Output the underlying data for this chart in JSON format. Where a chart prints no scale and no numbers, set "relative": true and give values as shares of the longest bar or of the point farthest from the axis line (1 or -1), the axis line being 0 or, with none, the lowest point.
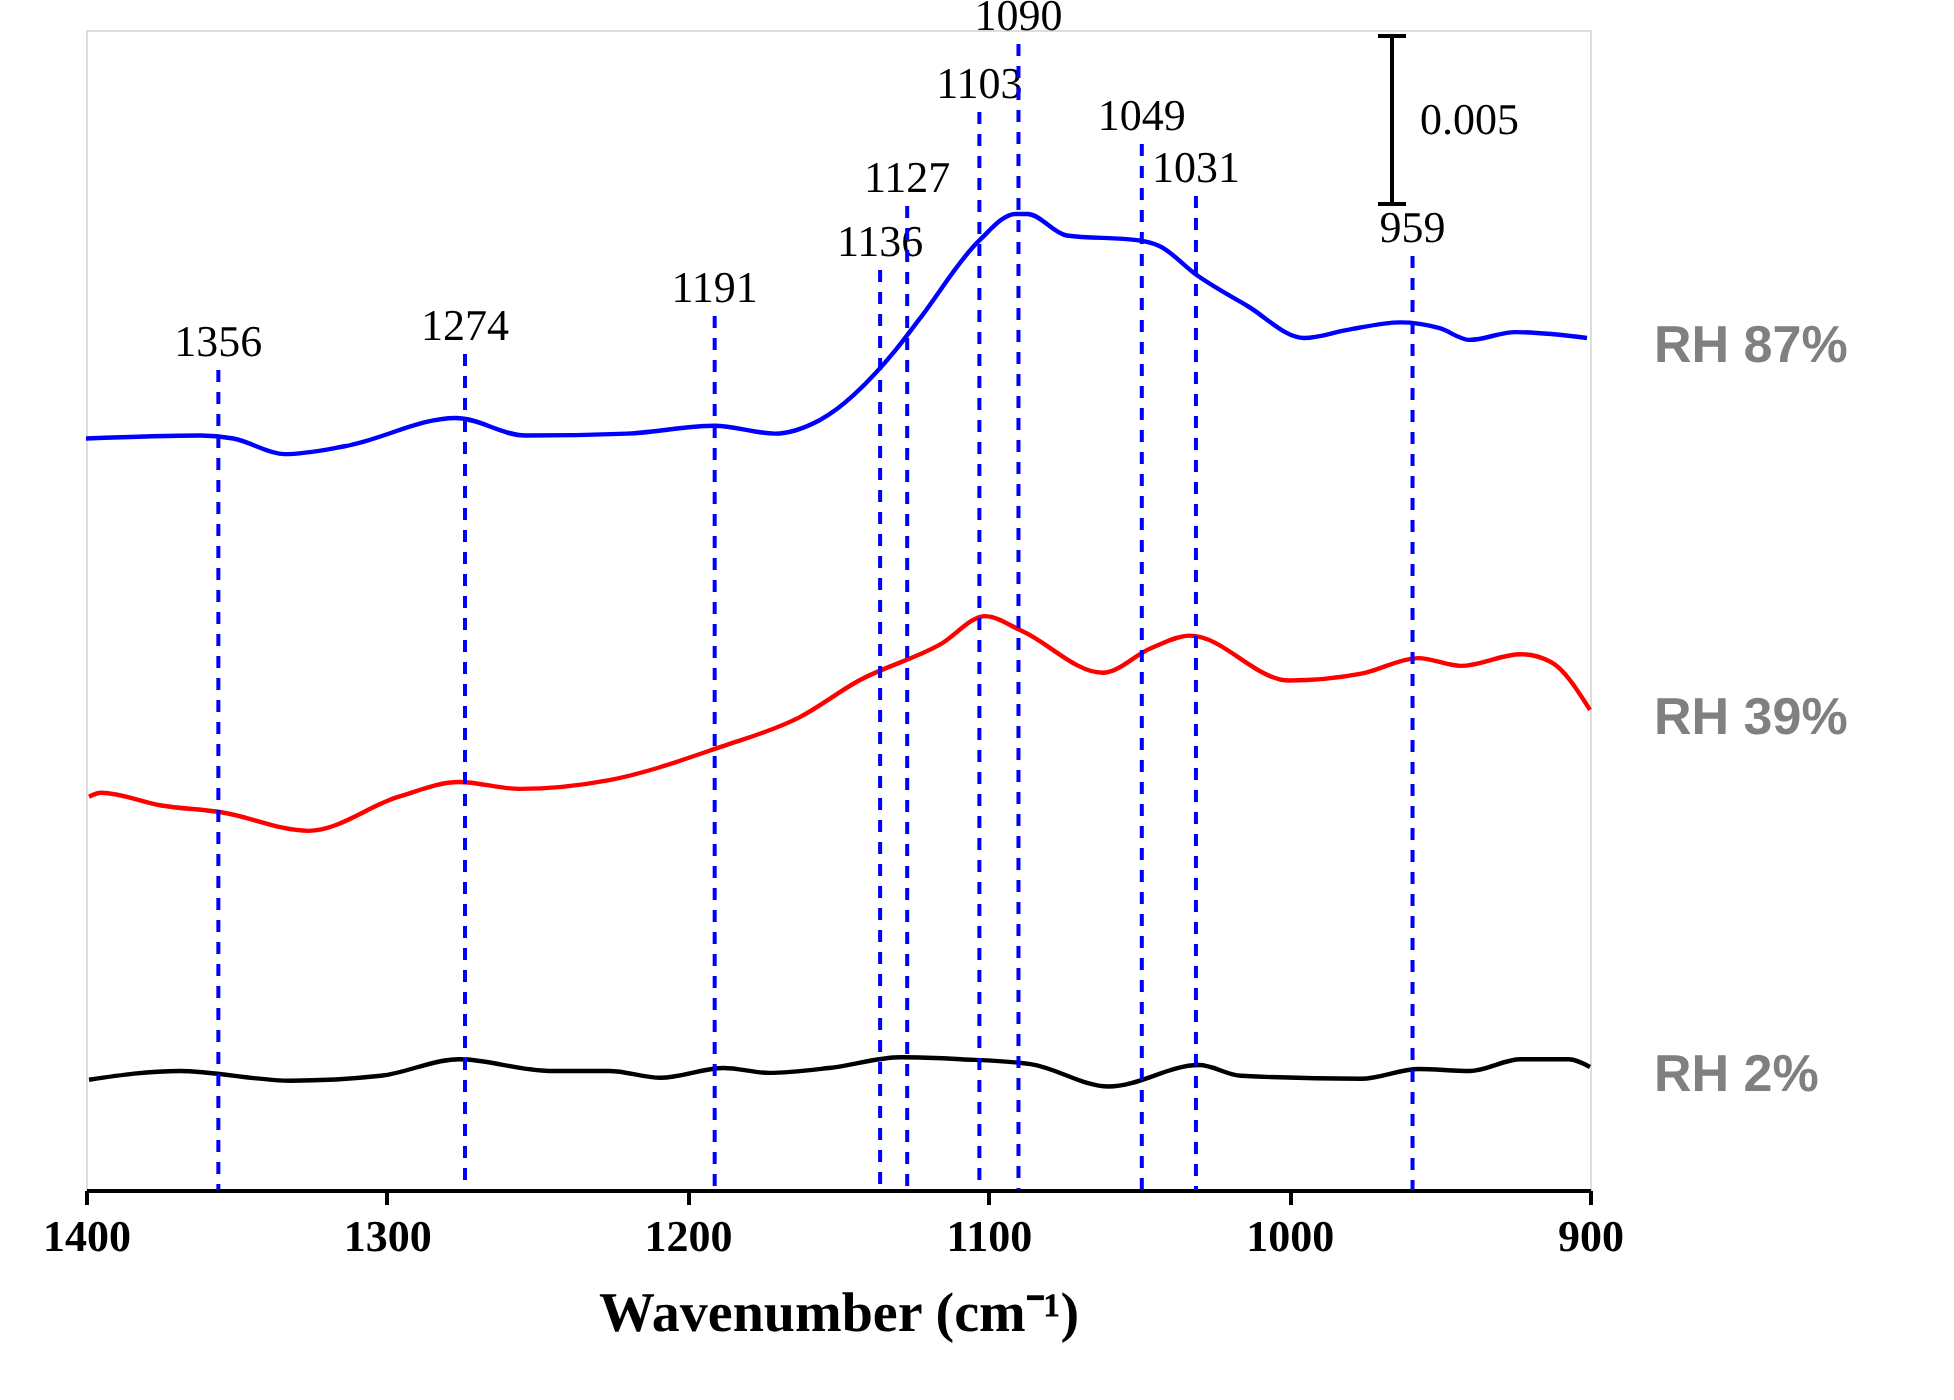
{
  "chart_data": {
    "type": "line",
    "relative": true,
    "xlabel": "Wavenumber (cm⁻¹)",
    "xlim": [
      1400,
      900
    ],
    "xticks": [
      1400,
      1300,
      1200,
      1100,
      1000,
      900
    ],
    "series": [
      {
        "name": "RH 87%",
        "color": "#0000ff",
        "x": [
          1400,
          1362,
          1351,
          1334,
          1314,
          1277,
          1254,
          1220,
          1191,
          1171,
          1156,
          1131,
          1123,
          1103,
          1091,
          1087,
          1074,
          1050,
          1043,
          1031,
          1014,
          995,
          981,
          963,
          950,
          940,
          925,
          901
        ],
        "values": [
          0.77,
          0.773,
          0.77,
          0.754,
          0.762,
          0.791,
          0.773,
          0.775,
          0.783,
          0.775,
          0.789,
          0.86,
          0.892,
          0.973,
          1.0,
          1.0,
          0.978,
          0.973,
          0.967,
          0.938,
          0.906,
          0.873,
          0.881,
          0.889,
          0.883,
          0.871,
          0.879,
          0.873
        ]
      },
      {
        "name": "RH 39%",
        "color": "#ff0000",
        "x": [
          1399,
          1395,
          1375,
          1355,
          1326,
          1296,
          1276,
          1256,
          1226,
          1189,
          1163,
          1143,
          1116,
          1101,
          1089,
          1062,
          1046,
          1033,
          1000,
          976,
          957,
          943,
          923,
          913,
          900
        ],
        "values": [
          0.403,
          0.407,
          0.394,
          0.387,
          0.368,
          0.403,
          0.418,
          0.411,
          0.42,
          0.454,
          0.484,
          0.522,
          0.559,
          0.588,
          0.573,
          0.53,
          0.555,
          0.568,
          0.522,
          0.529,
          0.545,
          0.537,
          0.549,
          0.541,
          0.492
        ]
      },
      {
        "name": "RH 2%",
        "color": "#000000",
        "x": [
          1399,
          1369,
          1332,
          1302,
          1276,
          1246,
          1226,
          1209,
          1188,
          1173,
          1153,
          1129,
          1109,
          1086,
          1060,
          1030,
          1016,
          976,
          957,
          940,
          923,
          907,
          900
        ],
        "values": [
          0.113,
          0.122,
          0.112,
          0.117,
          0.134,
          0.122,
          0.122,
          0.115,
          0.125,
          0.12,
          0.125,
          0.136,
          0.134,
          0.129,
          0.106,
          0.128,
          0.117,
          0.114,
          0.124,
          0.122,
          0.134,
          0.134,
          0.126
        ]
      }
    ],
    "ref_lines": [
      {
        "axis": "x",
        "value": 1356,
        "label": "1356",
        "color": "#0000ff",
        "line_style": "dashed"
      },
      {
        "axis": "x",
        "value": 1274,
        "label": "1274",
        "color": "#0000ff",
        "line_style": "dashed"
      },
      {
        "axis": "x",
        "value": 1191,
        "label": "1191",
        "color": "#0000ff",
        "line_style": "dashed"
      },
      {
        "axis": "x",
        "value": 1136,
        "label": "1136",
        "color": "#0000ff",
        "line_style": "dashed"
      },
      {
        "axis": "x",
        "value": 1127,
        "label": "1127",
        "color": "#0000ff",
        "line_style": "dashed"
      },
      {
        "axis": "x",
        "value": 1103,
        "label": "1103",
        "color": "#0000ff",
        "line_style": "dashed"
      },
      {
        "axis": "x",
        "value": 1090,
        "label": "1090",
        "color": "#0000ff",
        "line_style": "dashed"
      },
      {
        "axis": "x",
        "value": 1049,
        "label": "1049",
        "color": "#0000ff",
        "line_style": "dashed"
      },
      {
        "axis": "x",
        "value": 1031,
        "label": "1031",
        "color": "#0000ff",
        "line_style": "dashed"
      },
      {
        "axis": "x",
        "value": 959,
        "label": "959",
        "color": "#0000ff",
        "line_style": "dashed"
      }
    ],
    "annotations": [
      "0.005"
    ]
  }
}
